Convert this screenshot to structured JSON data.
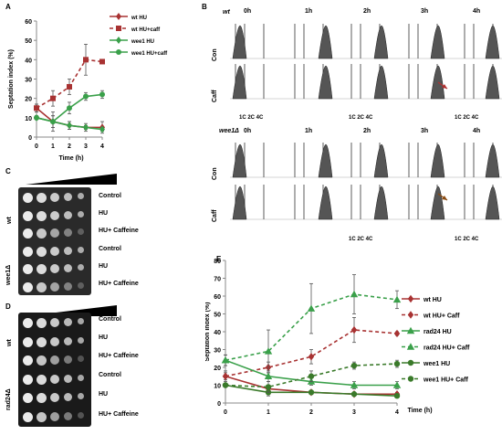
{
  "panel_labels": {
    "a": "A",
    "b": "B",
    "c": "C",
    "d": "D",
    "e": "E"
  },
  "colors": {
    "wt": "#a83232",
    "rad24": "#3aa04a",
    "wee1": "#3a7a2a"
  },
  "chart_data": [
    {
      "id": "A",
      "type": "line",
      "ylabel": "Septation index (%)",
      "xlabel": "Time (h)",
      "x": [
        0,
        1,
        2,
        3,
        4
      ],
      "xlim": [
        0,
        4
      ],
      "ylim": [
        0,
        60
      ],
      "yticks": [
        "0",
        "10",
        "20",
        "30",
        "40",
        "50",
        "60"
      ],
      "yticks_v": [
        0,
        10,
        20,
        30,
        40,
        50,
        60
      ],
      "xticks": [
        "0",
        "1",
        "2",
        "3",
        "4"
      ],
      "legend_position": "top-right",
      "series": [
        {
          "name": "wt HU",
          "values": [
            15,
            8,
            6,
            5,
            5
          ],
          "err": [
            2,
            3,
            2,
            2,
            3
          ],
          "color": "#a83232",
          "dash": false,
          "marker": "diamond"
        },
        {
          "name": "wt HU+caff",
          "values": [
            15,
            20,
            26,
            40,
            39
          ],
          "err": [
            2,
            4,
            4,
            8,
            1
          ],
          "color": "#a83232",
          "dash": true,
          "marker": "square"
        },
        {
          "name": "wee1 HU",
          "values": [
            10,
            8,
            6,
            5,
            4
          ],
          "err": [
            1,
            5,
            2,
            1,
            1
          ],
          "color": "#3aa04a",
          "dash": false,
          "marker": "diamond"
        },
        {
          "name": "wee1 HU+caff",
          "values": [
            10,
            8,
            15,
            21,
            22
          ],
          "err": [
            1,
            3,
            3,
            2,
            2
          ],
          "color": "#3aa04a",
          "dash": false,
          "marker": "circle"
        }
      ]
    },
    {
      "id": "E",
      "type": "line",
      "ylabel": "Septation index (%)",
      "xlabel": "Time (h)",
      "x": [
        0,
        1,
        2,
        3,
        4
      ],
      "xlim": [
        0,
        4
      ],
      "ylim": [
        0,
        80
      ],
      "yticks": [
        "0",
        "10",
        "20",
        "30",
        "40",
        "50",
        "60",
        "70",
        "80"
      ],
      "yticks_v": [
        0,
        10,
        20,
        30,
        40,
        50,
        60,
        70,
        80
      ],
      "xticks": [
        "0",
        "1",
        "2",
        "3",
        "4"
      ],
      "legend_position": "right",
      "series": [
        {
          "name": "wt HU",
          "values": [
            15,
            8,
            6,
            5,
            5
          ],
          "err": [
            2,
            2,
            1,
            1,
            1
          ],
          "color": "#a83232",
          "dash": false,
          "marker": "diamond"
        },
        {
          "name": "wt HU+ Caff",
          "values": [
            15,
            20,
            26,
            41,
            39
          ],
          "err": [
            3,
            3,
            4,
            7,
            1
          ],
          "color": "#a83232",
          "dash": true,
          "marker": "diamond"
        },
        {
          "name": "rad24 HU",
          "values": [
            24,
            15,
            12,
            10,
            10
          ],
          "err": [
            3,
            3,
            2,
            2,
            2
          ],
          "color": "#3aa04a",
          "dash": false,
          "marker": "triangle"
        },
        {
          "name": "rad24 HU+ Caff",
          "values": [
            24,
            29,
            53,
            61,
            58
          ],
          "err": [
            3,
            12,
            14,
            11,
            5
          ],
          "color": "#3aa04a",
          "dash": true,
          "marker": "triangle"
        },
        {
          "name": "wee1 HU",
          "values": [
            10,
            6,
            6,
            5,
            4
          ],
          "err": [
            1,
            2,
            1,
            1,
            1
          ],
          "color": "#3a7a2a",
          "dash": false,
          "marker": "circle"
        },
        {
          "name": "wee1 HU+ Caff",
          "values": [
            10,
            9,
            15,
            21,
            22
          ],
          "err": [
            1,
            3,
            3,
            2,
            2
          ],
          "color": "#3a7a2a",
          "dash": true,
          "marker": "circle"
        }
      ]
    }
  ],
  "panel_b": {
    "strain_top": "wt",
    "strain_bottom": "wee1Δ",
    "times": [
      "0h",
      "1h",
      "2h",
      "3h",
      "4h"
    ],
    "rows": [
      "Con",
      "Caff"
    ],
    "axis_label": "1C 2C 4C"
  },
  "panel_c": {
    "strains": [
      "wt",
      "wee1Δ"
    ],
    "conditions": [
      "Control",
      "HU",
      "HU+ Caffeine",
      "Control",
      "HU",
      "HU+ Caffeine"
    ]
  },
  "panel_d": {
    "strains": [
      "wt",
      "rad24Δ"
    ],
    "conditions": [
      "Control",
      "HU",
      "HU+ Caffeine",
      "Control",
      "HU",
      "HU+ Caffeine"
    ]
  }
}
